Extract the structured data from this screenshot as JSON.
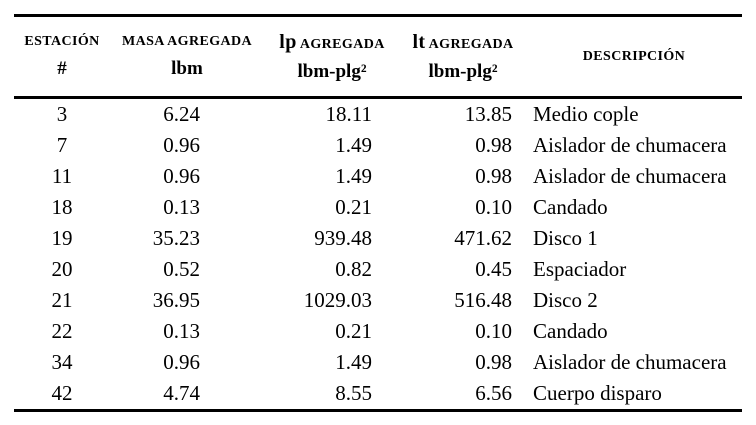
{
  "page": {
    "background_color": "#ffffff",
    "text_color": "#000000",
    "rule_color": "#000000"
  },
  "table": {
    "header": {
      "col1": {
        "caps": "ESTACIÓN",
        "unit": "#"
      },
      "col2": {
        "caps": "MASA AGREGADA",
        "unit": "lbm"
      },
      "col3": {
        "prefix": "lp",
        "caps": "AGREGADA",
        "unit": "lbm-plg²"
      },
      "col4": {
        "prefix": "lt",
        "caps": "AGREGADA",
        "unit": "lbm-plg²"
      },
      "col5": {
        "caps": "DESCRIPCIÓN"
      }
    },
    "rows": [
      {
        "estacion": "3",
        "masa": "6.24",
        "ip": "18.11",
        "it": "13.85",
        "descripcion": "Medio cople"
      },
      {
        "estacion": "7",
        "masa": "0.96",
        "ip": "1.49",
        "it": "0.98",
        "descripcion": "Aislador de chumacera"
      },
      {
        "estacion": "11",
        "masa": "0.96",
        "ip": "1.49",
        "it": "0.98",
        "descripcion": "Aislador de chumacera"
      },
      {
        "estacion": "18",
        "masa": "0.13",
        "ip": "0.21",
        "it": "0.10",
        "descripcion": "Candado"
      },
      {
        "estacion": "19",
        "masa": "35.23",
        "ip": "939.48",
        "it": "471.62",
        "descripcion": "Disco 1"
      },
      {
        "estacion": "20",
        "masa": "0.52",
        "ip": "0.82",
        "it": "0.45",
        "descripcion": "Espaciador"
      },
      {
        "estacion": "21",
        "masa": "36.95",
        "ip": "1029.03",
        "it": "516.48",
        "descripcion": "Disco 2"
      },
      {
        "estacion": "22",
        "masa": "0.13",
        "ip": "0.21",
        "it": "0.10",
        "descripcion": "Candado"
      },
      {
        "estacion": "34",
        "masa": "0.96",
        "ip": "1.49",
        "it": "0.98",
        "descripcion": "Aislador de chumacera"
      },
      {
        "estacion": "42",
        "masa": "4.74",
        "ip": "8.55",
        "it": "6.56",
        "descripcion": "Cuerpo disparo"
      }
    ]
  }
}
